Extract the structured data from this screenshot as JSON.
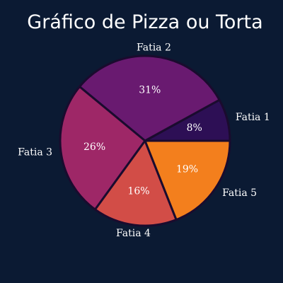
{
  "chart_data": {
    "type": "pie",
    "title": "Gráfico de Pizza ou Torta",
    "categories": [
      "Fatia 1",
      "Fatia 2",
      "Fatia 3",
      "Fatia 4",
      "Fatia 5"
    ],
    "values": [
      8,
      31,
      26,
      16,
      19
    ],
    "percent_labels": [
      "8%",
      "31%",
      "26%",
      "16%",
      "19%"
    ],
    "colors": [
      "#2d0f55",
      "#691a70",
      "#9e2767",
      "#d24d47",
      "#f37f1d"
    ],
    "start_angle_deg": 0,
    "direction": "counterclockwise",
    "edge_color": "#1a0b2e",
    "legend": "none"
  }
}
